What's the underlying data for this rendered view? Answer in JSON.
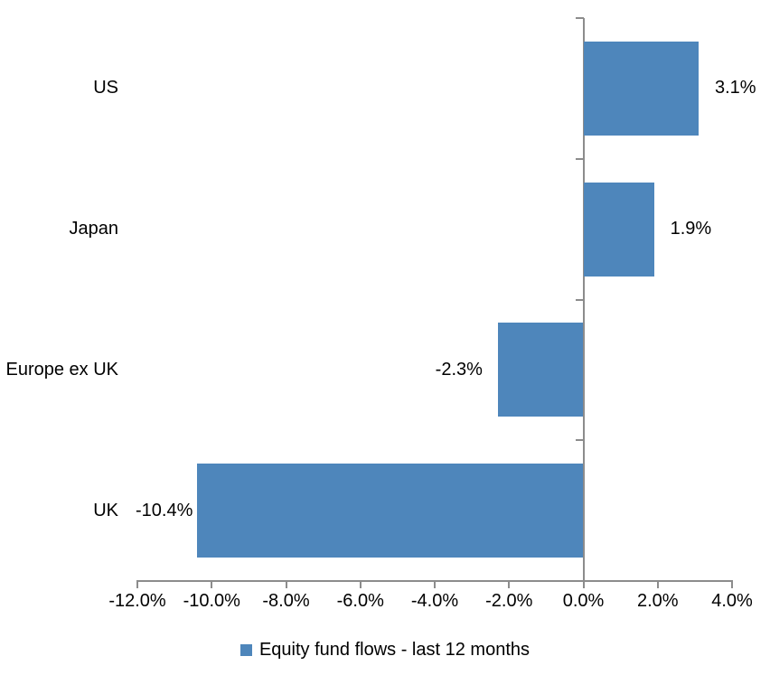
{
  "chart_data": {
    "type": "bar",
    "orientation": "horizontal",
    "title": "",
    "xlabel": "",
    "ylabel": "",
    "categories": [
      "US",
      "Japan",
      "Europe ex UK",
      "UK"
    ],
    "series": [
      {
        "name": "Equity fund flows - last 12 months",
        "values": [
          3.1,
          1.9,
          -2.3,
          -10.4
        ],
        "data_labels": [
          "3.1%",
          "1.9%",
          "-2.3%",
          "-10.4%"
        ]
      }
    ],
    "xlim": [
      -12,
      4
    ],
    "x_ticks": [
      -12,
      -10,
      -8,
      -6,
      -4,
      -2,
      0,
      2,
      4
    ],
    "x_tick_labels": [
      "-12.0%",
      "-10.0%",
      "-8.0%",
      "-6.0%",
      "-4.0%",
      "-2.0%",
      "0.0%",
      "2.0%",
      "4.0%"
    ],
    "grid": false,
    "legend_position": "bottom",
    "colors": {
      "bar": "#4e86bb",
      "axis": "#8c8c8c",
      "text": "#000000",
      "background": "#ffffff"
    }
  }
}
